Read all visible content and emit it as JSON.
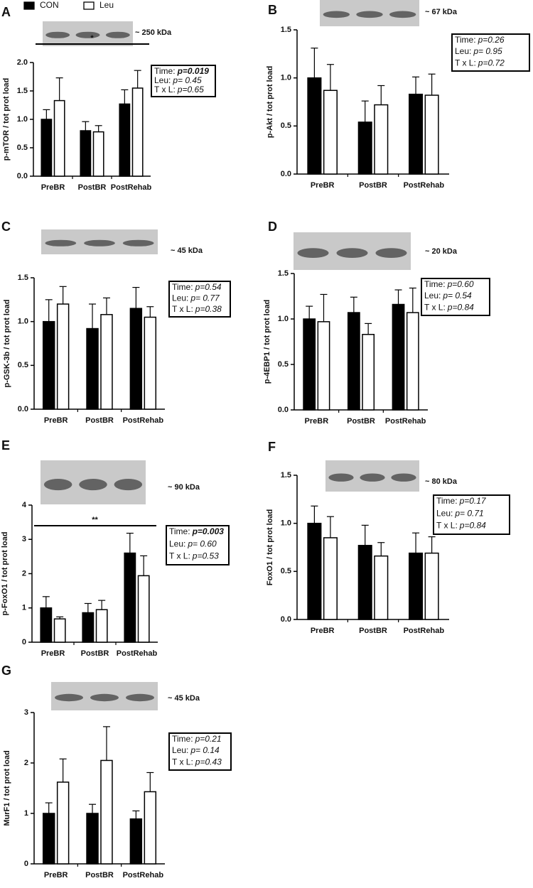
{
  "chart_data": [
    {
      "type": "bar",
      "panel": "A",
      "blot_label": "~ 250 kDa",
      "y_label": "p-mTOR / tot prot load",
      "categories": [
        "PreBR",
        "PostBR",
        "PostRehab"
      ],
      "series": [
        {
          "name": "CON",
          "color": "#000000",
          "values": [
            1.0,
            0.8,
            1.27
          ],
          "errors": [
            0.17,
            0.16,
            0.25
          ]
        },
        {
          "name": "Leu",
          "color": "#ffffff",
          "values": [
            1.33,
            0.78,
            1.55
          ],
          "errors": [
            0.4,
            0.11,
            0.31
          ]
        }
      ],
      "ylim": [
        0,
        2
      ],
      "yticks": [
        {
          "value": 0,
          "label": "0.0"
        },
        0.5,
        {
          "value": 1,
          "label": "1.0"
        },
        1.5,
        {
          "value": 2,
          "label": "2.0"
        }
      ],
      "significance": "*",
      "stats": [
        {
          "label": "Time:",
          "value": "p=0.019",
          "bold": true
        },
        {
          "label": "Leu:",
          "value": "p= 0.45"
        },
        {
          "label": "T x L:",
          "value": "p=0.65"
        }
      ]
    },
    {
      "type": "bar",
      "panel": "B",
      "blot_label": "~ 67 kDa",
      "y_label": "p-Akt / tot prot load",
      "categories": [
        "PreBR",
        "PostBR",
        "PostRehab"
      ],
      "series": [
        {
          "color": "#000000",
          "values": [
            1.0,
            0.54,
            0.83
          ],
          "errors": [
            0.31,
            0.22,
            0.18
          ]
        },
        {
          "color": "#ffffff",
          "values": [
            0.87,
            0.72,
            0.82
          ],
          "errors": [
            0.27,
            0.2,
            0.22
          ]
        }
      ],
      "ylim": [
        0,
        1.5
      ],
      "yticks": [
        {
          "value": 0,
          "label": "0.0"
        },
        0.5,
        {
          "value": 1,
          "label": "1.0"
        },
        1.5
      ],
      "stats": [
        {
          "label": "Time:",
          "value": "p=0.26"
        },
        {
          "label": "Leu:",
          "value": "p= 0.95"
        },
        {
          "label": "T x L:",
          "value": "p=0.72"
        }
      ]
    },
    {
      "type": "bar",
      "panel": "C",
      "blot_label": "~ 45 kDa",
      "y_label": "p-GSK-3b / tot prot load",
      "categories": [
        "PreBR",
        "PostBR",
        "PostRehab"
      ],
      "series": [
        {
          "color": "#000000",
          "values": [
            1.0,
            0.92,
            1.15
          ],
          "errors": [
            0.25,
            0.28,
            0.24
          ]
        },
        {
          "color": "#ffffff",
          "values": [
            1.2,
            1.08,
            1.05
          ],
          "errors": [
            0.2,
            0.19,
            0.12
          ]
        }
      ],
      "ylim": [
        0,
        1.5
      ],
      "yticks": [
        {
          "value": 0,
          "label": "0.0"
        },
        0.5,
        {
          "value": 1,
          "label": "1.0"
        },
        1.5
      ],
      "stats": [
        {
          "label": "Time:",
          "value": "p=0.54"
        },
        {
          "label": "Leu:",
          "value": "p= 0.77"
        },
        {
          "label": "T x L:",
          "value": "p=0.38"
        }
      ]
    },
    {
      "type": "bar",
      "panel": "D",
      "blot_label": "~ 20 kDa",
      "y_label": "p-4EBP1 / tot prot load",
      "categories": [
        "PreBR",
        "PostBR",
        "PostRehab"
      ],
      "series": [
        {
          "color": "#000000",
          "values": [
            1.0,
            1.07,
            1.16
          ],
          "errors": [
            0.14,
            0.17,
            0.16
          ]
        },
        {
          "color": "#ffffff",
          "values": [
            0.97,
            0.83,
            1.07
          ],
          "errors": [
            0.3,
            0.12,
            0.27
          ]
        }
      ],
      "ylim": [
        0,
        1.5
      ],
      "yticks": [
        {
          "value": 0,
          "label": "0.0"
        },
        0.5,
        {
          "value": 1,
          "label": "1.0"
        },
        1.5
      ],
      "stats": [
        {
          "label": "Time:",
          "value": "p=0.60"
        },
        {
          "label": "Leu:",
          "value": "p= 0.54"
        },
        {
          "label": "T x L:",
          "value": "p=0.84"
        }
      ]
    },
    {
      "type": "bar",
      "panel": "E",
      "blot_label": "~ 90 kDa",
      "y_label": "p-FoxO1 / tot prot load",
      "categories": [
        "PreBR",
        "PostBR",
        "PostRehab"
      ],
      "series": [
        {
          "color": "#000000",
          "values": [
            1.0,
            0.86,
            2.6
          ],
          "errors": [
            0.33,
            0.27,
            0.58
          ]
        },
        {
          "color": "#ffffff",
          "values": [
            0.68,
            0.95,
            1.94
          ],
          "errors": [
            0.06,
            0.27,
            0.58
          ]
        }
      ],
      "ylim": [
        0,
        4
      ],
      "yticks": [
        0,
        1,
        2,
        3,
        4
      ],
      "significance": "**",
      "stats": [
        {
          "label": "Time:",
          "value": "p=0.003",
          "bold": true
        },
        {
          "label": "Leu:",
          "value": "p= 0.60"
        },
        {
          "label": "T x L:",
          "value": "p=0.53"
        }
      ]
    },
    {
      "type": "bar",
      "panel": "F",
      "blot_label": "~ 80 kDa",
      "y_label": "FoxO1 / tot prot load",
      "categories": [
        "PreBR",
        "PostBR",
        "PostRehab"
      ],
      "series": [
        {
          "color": "#000000",
          "values": [
            1.0,
            0.77,
            0.69
          ],
          "errors": [
            0.18,
            0.21,
            0.21
          ]
        },
        {
          "color": "#ffffff",
          "values": [
            0.85,
            0.66,
            0.69
          ],
          "errors": [
            0.22,
            0.14,
            0.17
          ]
        }
      ],
      "ylim": [
        0,
        1.5
      ],
      "yticks": [
        {
          "value": 0,
          "label": "0.0"
        },
        0.5,
        {
          "value": 1,
          "label": "1.0"
        },
        1.5
      ],
      "stats": [
        {
          "label": "Time:",
          "value": "p=0.17"
        },
        {
          "label": "Leu:",
          "value": "p= 0.71"
        },
        {
          "label": "T x L:",
          "value": "p=0.84"
        }
      ]
    },
    {
      "type": "bar",
      "panel": "G",
      "blot_label": "~ 45 kDa",
      "y_label": "MurF1 / tot prot load",
      "categories": [
        "PreBR",
        "PostBR",
        "PostRehab"
      ],
      "series": [
        {
          "color": "#000000",
          "values": [
            1.0,
            1.0,
            0.89
          ],
          "errors": [
            0.21,
            0.18,
            0.16
          ]
        },
        {
          "color": "#ffffff",
          "values": [
            1.62,
            2.05,
            1.43
          ],
          "errors": [
            0.46,
            0.67,
            0.38
          ]
        }
      ],
      "ylim": [
        0,
        3
      ],
      "yticks": [
        0,
        1,
        2,
        3
      ],
      "stats": [
        {
          "label": "Time:",
          "value": "p=0.21"
        },
        {
          "label": "Leu:",
          "value": "p= 0.14"
        },
        {
          "label": "T x L:",
          "value": "p=0.43"
        }
      ]
    }
  ]
}
